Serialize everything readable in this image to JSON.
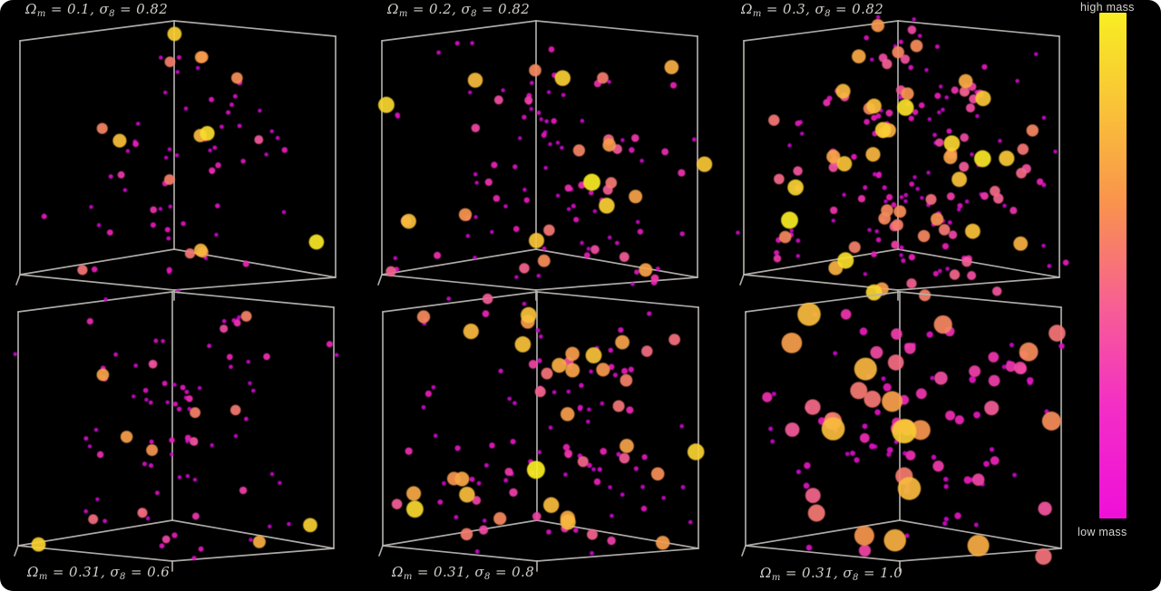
{
  "figure": {
    "background": "#000000",
    "page_background": "#ffffff"
  },
  "colorbar": {
    "label_top": "high mass",
    "label_bottom": "low mass",
    "gradient_stops": [
      [
        "0%",
        "#f8ee22"
      ],
      [
        "18%",
        "#f9c437"
      ],
      [
        "38%",
        "#f9924e"
      ],
      [
        "58%",
        "#f75f93"
      ],
      [
        "78%",
        "#f32ec6"
      ],
      [
        "100%",
        "#ef0fd9"
      ]
    ]
  },
  "chart_data": {
    "type": "scatter",
    "subtype": "3d-scatter-cube-grid",
    "grid": {
      "rows": 2,
      "cols": 3
    },
    "separators": {
      "eq": " = ",
      "comma": ", "
    },
    "colormap_stops": [
      [
        0,
        "#cb05cb"
      ],
      [
        0.3,
        "#ec1fb7"
      ],
      [
        0.55,
        "#f2589b"
      ],
      [
        0.75,
        "#f69350"
      ],
      [
        0.9,
        "#f7c437"
      ],
      [
        1,
        "#f8ee22"
      ]
    ],
    "cube": {
      "B_t": [
        190,
        10
      ],
      "B_b": [
        190,
        262
      ],
      "L_t": [
        20,
        32
      ],
      "L_b": [
        20,
        290
      ],
      "R_t": [
        368,
        27
      ],
      "R_b": [
        368,
        293
      ],
      "F_b": [
        190,
        307
      ],
      "ticks": [
        [
          [
            20,
            290
          ],
          [
            16,
            301
          ]
        ],
        [
          [
            190,
            307
          ],
          [
            190,
            318
          ]
        ]
      ],
      "line_color": "#b6b3af",
      "line_width": 1.7
    },
    "panels": [
      {
        "param1_name": "Ω",
        "param1_sub": "m",
        "param1_value": "0.1",
        "param2_name": "σ",
        "param2_sub": "8",
        "param2_value": "0.82",
        "label_position": "top",
        "render": {
          "seed": 101,
          "n": 72,
          "mass_bias": 2.9,
          "min_r": 2.2,
          "max_r": 8.5,
          "cluster_p": 0.16
        }
      },
      {
        "param1_name": "Ω",
        "param1_sub": "m",
        "param1_value": "0.2",
        "param2_name": "σ",
        "param2_sub": "8",
        "param2_value": "0.82",
        "label_position": "top",
        "render": {
          "seed": 202,
          "n": 112,
          "mass_bias": 2.7,
          "min_r": 2.2,
          "max_r": 9.5,
          "cluster_p": 0.2
        }
      },
      {
        "param1_name": "Ω",
        "param1_sub": "m",
        "param1_value": "0.3",
        "param2_name": "σ",
        "param2_sub": "8",
        "param2_value": "0.82",
        "label_position": "top",
        "render": {
          "seed": 303,
          "n": 200,
          "mass_bias": 2.5,
          "min_r": 2.2,
          "max_r": 9.5,
          "cluster_p": 0.26
        }
      },
      {
        "param1_name": "Ω",
        "param1_sub": "m",
        "param1_value": "0.31",
        "param2_name": "σ",
        "param2_sub": "8",
        "param2_value": "0.6",
        "label_position": "bottom",
        "render": {
          "seed": 404,
          "n": 90,
          "mass_bias": 3.0,
          "min_r": 2.2,
          "max_r": 8.5,
          "cluster_p": 0.18
        }
      },
      {
        "param1_name": "Ω",
        "param1_sub": "m",
        "param1_value": "0.31",
        "param2_name": "σ",
        "param2_sub": "8",
        "param2_value": "0.8",
        "label_position": "bottom",
        "render": {
          "seed": 505,
          "n": 126,
          "mass_bias": 2.4,
          "min_r": 2.3,
          "max_r": 10,
          "cluster_p": 0.2
        }
      },
      {
        "param1_name": "Ω",
        "param1_sub": "m",
        "param1_value": "0.31",
        "param2_name": "σ",
        "param2_sub": "8",
        "param2_value": "1.0",
        "label_position": "bottom",
        "render": {
          "seed": 606,
          "n": 112,
          "mass_bias": 1.9,
          "min_r": 2.4,
          "max_r": 15,
          "cluster_p": 0.2
        }
      }
    ]
  }
}
